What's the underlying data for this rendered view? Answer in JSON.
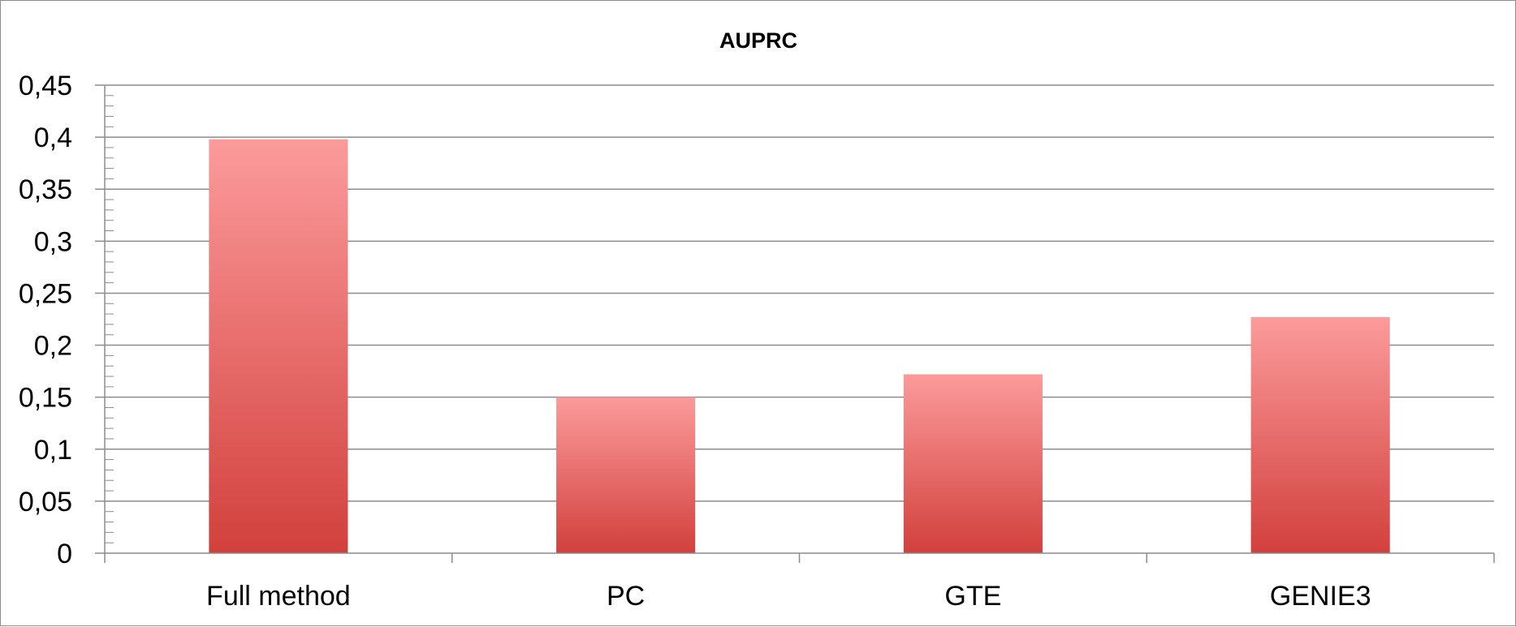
{
  "chart_data": {
    "type": "bar",
    "title": "AUPRC",
    "categories": [
      "Full method",
      "PC",
      "GTE",
      "GENIE3"
    ],
    "values": [
      0.398,
      0.15,
      0.172,
      0.227
    ],
    "ylim": [
      0,
      0.45
    ],
    "yticks": [
      0,
      0.05,
      0.1,
      0.15,
      0.2,
      0.25,
      0.3,
      0.35,
      0.4,
      0.45
    ],
    "ytick_labels": [
      "0",
      "0,05",
      "0,1",
      "0,15",
      "0,2",
      "0,25",
      "0,3",
      "0,35",
      "0,4",
      "0,45"
    ],
    "grid": true,
    "legend": "none",
    "colors": {
      "bar_top": "#fb9b9b",
      "bar_bottom": "#d2403c",
      "grid": "#8c8c8c",
      "axis": "#8c8c8c"
    }
  }
}
